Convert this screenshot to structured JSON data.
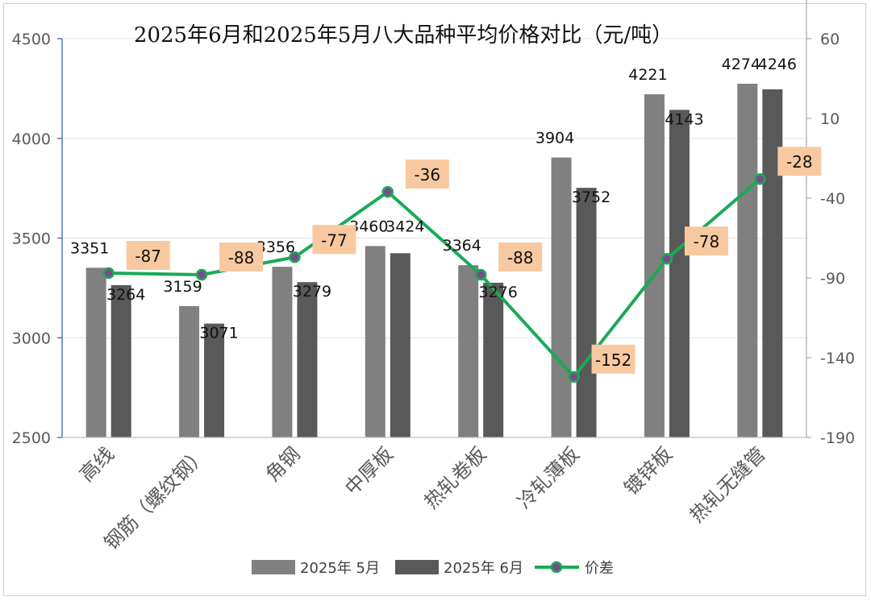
{
  "chart_data": {
    "type": "bar",
    "title": "2025年6月和2025年5月八大品种平均价格对比（元/吨）",
    "categories": [
      "高线",
      "钢筋（螺纹钢）",
      "角钢",
      "中厚板",
      "热轧卷板",
      "冷轧薄板",
      "镀锌板",
      "热轧无缝管"
    ],
    "series": [
      {
        "name": "2025年 5月",
        "type": "bar",
        "axis": "left",
        "color": "#808080",
        "values": [
          3351,
          3159,
          3356,
          3460,
          3364,
          3904,
          4221,
          4274
        ]
      },
      {
        "name": "2025年 6月",
        "type": "bar",
        "axis": "left",
        "color": "#595959",
        "values": [
          3264,
          3071,
          3279,
          3424,
          3276,
          3752,
          4143,
          4246
        ]
      },
      {
        "name": "价差",
        "type": "line",
        "axis": "right",
        "color": "#1aaa55",
        "marker_color": "#7a4a8c",
        "values": [
          -87,
          -88,
          -77,
          -36,
          -88,
          -152,
          -78,
          -28
        ]
      }
    ],
    "left_axis": {
      "min": 2500,
      "max": 4500,
      "ticks": [
        2500,
        3000,
        3500,
        4000,
        4500
      ]
    },
    "right_axis": {
      "min": -190,
      "max": 60,
      "ticks": [
        -190,
        -140,
        -90,
        -40,
        10,
        60
      ]
    },
    "diff_label_color": "#f8c9a0",
    "grid": true,
    "legend_position": "bottom"
  }
}
